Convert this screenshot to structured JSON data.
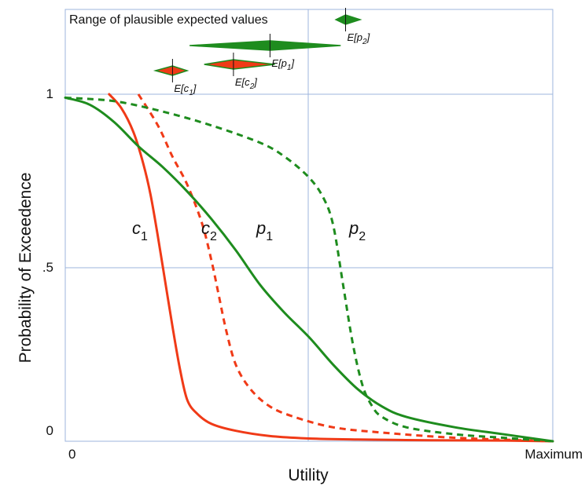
{
  "chart_data": {
    "type": "line",
    "title": "",
    "xlabel": "Utility",
    "ylabel": "Probability of Exceedence",
    "xlim": [
      0,
      1
    ],
    "ylim": [
      0,
      1
    ],
    "x_ticks": [
      {
        "value": 0,
        "label": "0"
      },
      {
        "value": 1,
        "label": "Maximum"
      }
    ],
    "y_ticks": [
      {
        "value": 0,
        "label": "0"
      },
      {
        "value": 0.5,
        "label": ".5"
      },
      {
        "value": 1,
        "label": "1"
      }
    ],
    "grid": true,
    "range_label": "Range of plausible expected values",
    "colors": {
      "c": "#f03a17",
      "p": "#1e8c1e",
      "grid": "#9db4dc"
    },
    "series": [
      {
        "name": "c1",
        "label_base": "c",
        "label_sub": "1",
        "color": "#f03a17",
        "dashed": false,
        "x": [
          0.09,
          0.115,
          0.14,
          0.16,
          0.175,
          0.19,
          0.205,
          0.22,
          0.235,
          0.25,
          0.27,
          0.3,
          0.35,
          0.42,
          0.5,
          0.6,
          0.75,
          0.9,
          1.0
        ],
        "y": [
          1.0,
          0.96,
          0.89,
          0.8,
          0.71,
          0.59,
          0.46,
          0.33,
          0.21,
          0.12,
          0.08,
          0.05,
          0.03,
          0.015,
          0.008,
          0.005,
          0.003,
          0.002,
          0.0
        ]
      },
      {
        "name": "c2",
        "label_base": "c",
        "label_sub": "2",
        "color": "#f03a17",
        "dashed": true,
        "x": [
          0.15,
          0.19,
          0.22,
          0.25,
          0.28,
          0.3,
          0.315,
          0.33,
          0.35,
          0.38,
          0.42,
          0.47,
          0.55,
          0.65,
          0.8,
          1.0
        ],
        "y": [
          1.0,
          0.91,
          0.82,
          0.74,
          0.63,
          0.52,
          0.42,
          0.32,
          0.22,
          0.15,
          0.1,
          0.07,
          0.04,
          0.025,
          0.01,
          0.0
        ]
      },
      {
        "name": "p1",
        "label_base": "p",
        "label_sub": "1",
        "color": "#1e8c1e",
        "dashed": false,
        "x": [
          0.0,
          0.05,
          0.1,
          0.15,
          0.2,
          0.25,
          0.3,
          0.35,
          0.4,
          0.45,
          0.5,
          0.55,
          0.6,
          0.65,
          0.7,
          0.8,
          0.9,
          1.0
        ],
        "y": [
          0.99,
          0.97,
          0.92,
          0.85,
          0.79,
          0.72,
          0.64,
          0.55,
          0.45,
          0.37,
          0.3,
          0.22,
          0.15,
          0.1,
          0.07,
          0.04,
          0.02,
          0.0
        ]
      },
      {
        "name": "p2",
        "label_base": "p",
        "label_sub": "2",
        "color": "#1e8c1e",
        "dashed": true,
        "x": [
          0.0,
          0.1,
          0.2,
          0.3,
          0.4,
          0.45,
          0.5,
          0.53,
          0.55,
          0.57,
          0.59,
          0.61,
          0.63,
          0.65,
          0.7,
          0.8,
          0.9,
          1.0
        ],
        "y": [
          0.99,
          0.98,
          0.95,
          0.91,
          0.86,
          0.82,
          0.76,
          0.7,
          0.62,
          0.45,
          0.28,
          0.16,
          0.1,
          0.07,
          0.04,
          0.02,
          0.01,
          0.0
        ]
      }
    ],
    "expected_values": [
      {
        "name": "E[c1]",
        "label_base": "E[c",
        "label_sub": "1",
        "label_end": "]",
        "color": "#f03a17",
        "stroke": "#1e8c1e",
        "center": 0.22,
        "low": 0.185,
        "high": 0.25,
        "row": 3
      },
      {
        "name": "E[c2]",
        "label_base": "E[c",
        "label_sub": "2",
        "label_end": "]",
        "color": "#f03a17",
        "stroke": "#1e8c1e",
        "center": 0.345,
        "low": 0.285,
        "high": 0.43,
        "row": 2
      },
      {
        "name": "E[p1]",
        "label_base": "E[p",
        "label_sub": "1",
        "label_end": "]",
        "color": "#1e8c1e",
        "stroke": "#1e8c1e",
        "center": 0.42,
        "low": 0.255,
        "high": 0.565,
        "row": 1
      },
      {
        "name": "E[p2]",
        "label_base": "E[p",
        "label_sub": "2",
        "label_end": "]",
        "color": "#1e8c1e",
        "stroke": "#1e8c1e",
        "center": 0.575,
        "low": 0.555,
        "high": 0.605,
        "row": 0
      }
    ]
  }
}
